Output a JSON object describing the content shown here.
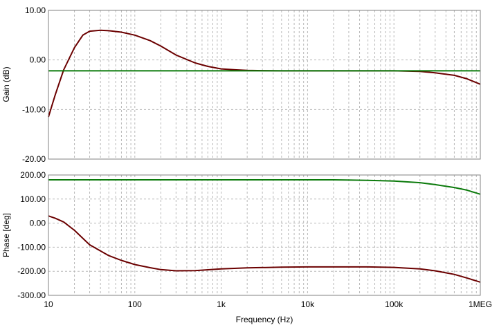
{
  "colors": {
    "series_a": "#6b0000",
    "series_b": "#0b7a0b",
    "grid": "#b8b8b8",
    "frame": "#808080"
  },
  "chart_data": [
    {
      "type": "line",
      "ylabel": "Gain (dB)",
      "xscale": "log",
      "xlim": [
        10,
        1000000
      ],
      "ylim": [
        -20,
        10
      ],
      "yticks": [
        "10.00",
        "0.00",
        "-10.00",
        "-20.00"
      ],
      "grid": true,
      "series": [
        {
          "x": [
            10,
            12,
            15,
            20,
            25,
            30,
            40,
            50,
            70,
            100,
            150,
            200,
            300,
            500,
            700,
            1000,
            1500,
            2000,
            3000,
            5000,
            10000,
            30000,
            100000,
            200000,
            300000,
            500000,
            700000,
            1000000
          ],
          "values": [
            -11.5,
            -7.0,
            -2.0,
            2.5,
            5.0,
            5.8,
            6.0,
            5.9,
            5.6,
            5.0,
            3.9,
            2.8,
            1.0,
            -0.6,
            -1.3,
            -1.8,
            -2.0,
            -2.1,
            -2.15,
            -2.2,
            -2.2,
            -2.2,
            -2.2,
            -2.3,
            -2.6,
            -3.1,
            -3.8,
            -4.9
          ]
        },
        {
          "x": [
            10,
            1000000
          ],
          "values": [
            -2.2,
            -2.2
          ]
        }
      ]
    },
    {
      "type": "line",
      "ylabel": "Phase [deg]",
      "xlabel": "Frequency (Hz)",
      "xscale": "log",
      "xlim": [
        10,
        1000000
      ],
      "ylim": [
        -300,
        200
      ],
      "yticks": [
        "200.00",
        "100.00",
        "0.00",
        "-100.00",
        "-200.00",
        "-300.00"
      ],
      "xticks": [
        "10",
        "100",
        "1k",
        "10k",
        "100k",
        "1MEG"
      ],
      "grid": true,
      "series": [
        {
          "x": [
            10,
            12,
            15,
            20,
            30,
            50,
            70,
            100,
            150,
            200,
            300,
            500,
            1000,
            2000,
            5000,
            10000,
            50000,
            100000,
            200000,
            300000,
            500000,
            700000,
            1000000
          ],
          "values": [
            30,
            20,
            5,
            -30,
            -90,
            -135,
            -155,
            -172,
            -185,
            -193,
            -198,
            -197,
            -190,
            -186,
            -183,
            -182,
            -182,
            -184,
            -190,
            -198,
            -213,
            -228,
            -245
          ]
        },
        {
          "x": [
            10,
            1000,
            10000,
            20000,
            50000,
            100000,
            200000,
            300000,
            500000,
            700000,
            1000000
          ],
          "values": [
            180,
            180,
            180,
            180,
            178,
            175,
            168,
            160,
            148,
            137,
            120
          ]
        }
      ]
    }
  ]
}
